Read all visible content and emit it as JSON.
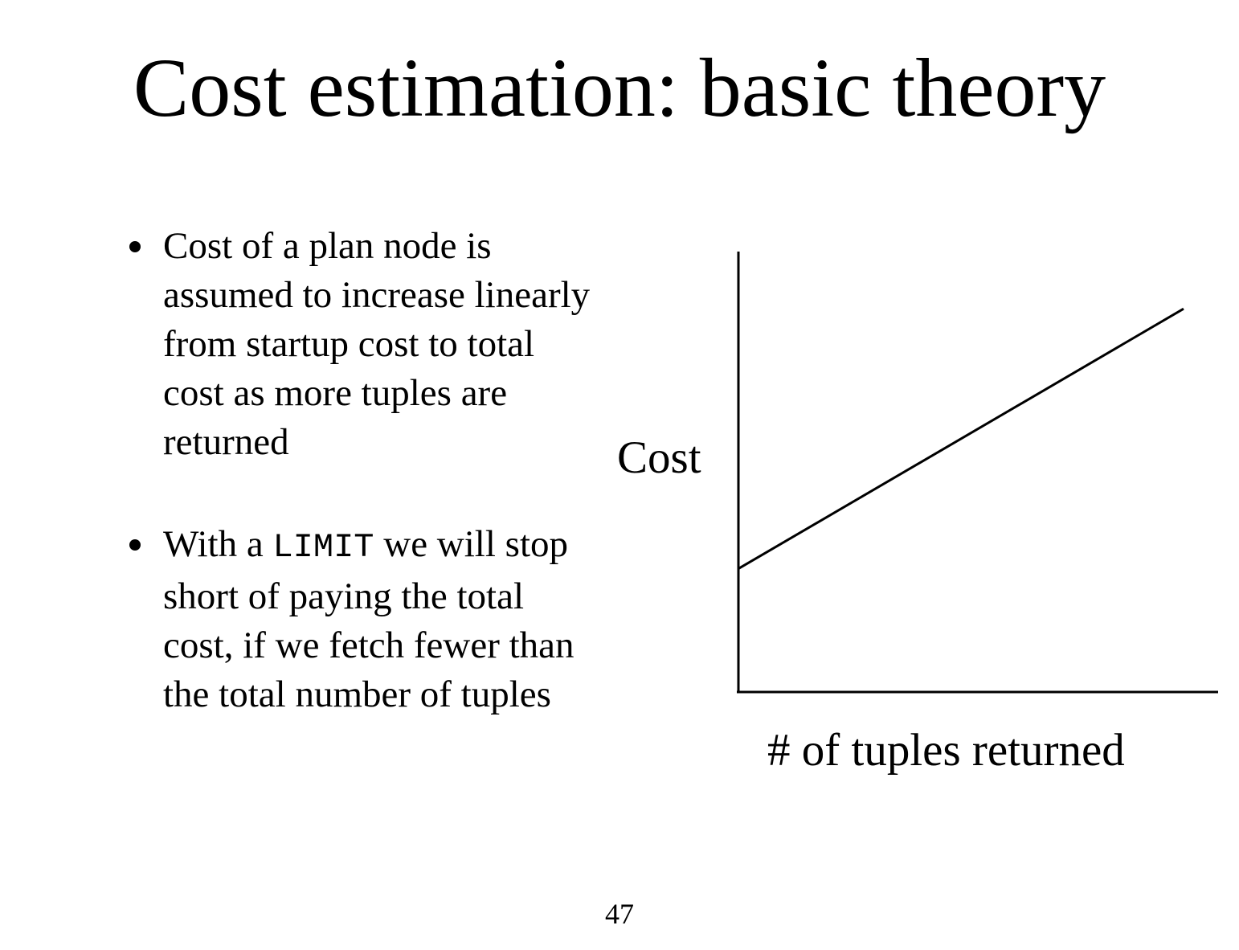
{
  "slide": {
    "title": "Cost estimation: basic theory",
    "page_number": "47"
  },
  "bullets": [
    {
      "text": "Cost of a plan node is assumed to increase linearly from startup cost to total cost as more tuples are returned"
    },
    {
      "text_before": "With a ",
      "code": "LIMIT",
      "text_after": " we will stop short of paying the total cost, if we fetch fewer than the total number of tuples"
    }
  ],
  "diagram": {
    "ylabel": "Cost",
    "xlabel": "# of tuples returned",
    "axes": "left and bottom only, no ticks",
    "line": {
      "description": "straight line rising from a positive intercept on the cost axis",
      "start_level": 0.28,
      "end_level": 0.87
    },
    "colors": {
      "stroke": "#000000",
      "background": "#ffffff"
    }
  }
}
